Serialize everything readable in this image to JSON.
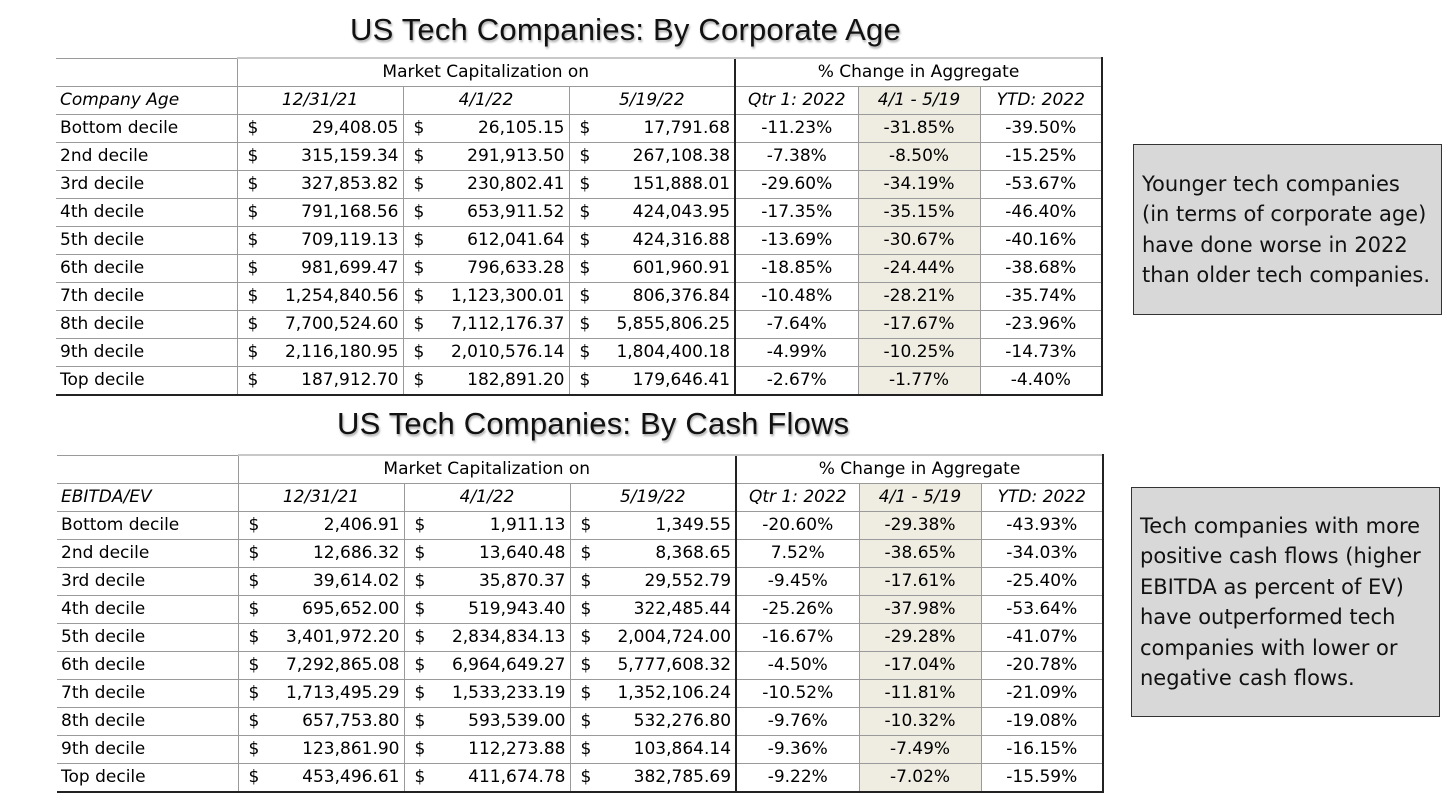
{
  "tables": [
    {
      "title": "US Tech Companies: By Corporate Age",
      "group_headers": [
        "Market Capitalization on",
        "% Change in Aggregate"
      ],
      "columns": [
        "Company Age",
        "12/31/21",
        "4/1/22",
        "5/19/22",
        "Qtr 1: 2022",
        "4/1 - 5/19",
        "YTD: 2022"
      ],
      "currency": "$",
      "rows": [
        {
          "label": "Bottom decile",
          "v1": "29,408.05",
          "v2": "26,105.15",
          "v3": "17,791.68",
          "p1": "-11.23%",
          "p2": "-31.85%",
          "p3": "-39.50%"
        },
        {
          "label": "2nd decile",
          "v1": "315,159.34",
          "v2": "291,913.50",
          "v3": "267,108.38",
          "p1": "-7.38%",
          "p2": "-8.50%",
          "p3": "-15.25%"
        },
        {
          "label": "3rd decile",
          "v1": "327,853.82",
          "v2": "230,802.41",
          "v3": "151,888.01",
          "p1": "-29.60%",
          "p2": "-34.19%",
          "p3": "-53.67%"
        },
        {
          "label": "4th decile",
          "v1": "791,168.56",
          "v2": "653,911.52",
          "v3": "424,043.95",
          "p1": "-17.35%",
          "p2": "-35.15%",
          "p3": "-46.40%"
        },
        {
          "label": "5th decile",
          "v1": "709,119.13",
          "v2": "612,041.64",
          "v3": "424,316.88",
          "p1": "-13.69%",
          "p2": "-30.67%",
          "p3": "-40.16%"
        },
        {
          "label": "6th decile",
          "v1": "981,699.47",
          "v2": "796,633.28",
          "v3": "601,960.91",
          "p1": "-18.85%",
          "p2": "-24.44%",
          "p3": "-38.68%"
        },
        {
          "label": "7th decile",
          "v1": "1,254,840.56",
          "v2": "1,123,300.01",
          "v3": "806,376.84",
          "p1": "-10.48%",
          "p2": "-28.21%",
          "p3": "-35.74%"
        },
        {
          "label": "8th decile",
          "v1": "7,700,524.60",
          "v2": "7,112,176.37",
          "v3": "5,855,806.25",
          "p1": "-7.64%",
          "p2": "-17.67%",
          "p3": "-23.96%"
        },
        {
          "label": "9th decile",
          "v1": "2,116,180.95",
          "v2": "2,010,576.14",
          "v3": "1,804,400.18",
          "p1": "-4.99%",
          "p2": "-10.25%",
          "p3": "-14.73%"
        },
        {
          "label": "Top decile",
          "v1": "187,912.70",
          "v2": "182,891.20",
          "v3": "179,646.41",
          "p1": "-2.67%",
          "p2": "-1.77%",
          "p3": "-4.40%"
        }
      ]
    },
    {
      "title": "US Tech Companies: By Cash Flows",
      "group_headers": [
        "Market Capitalization on",
        "% Change in Aggregate"
      ],
      "columns": [
        "EBITDA/EV",
        "12/31/21",
        "4/1/22",
        "5/19/22",
        "Qtr 1: 2022",
        "4/1 - 5/19",
        "YTD: 2022"
      ],
      "currency": "$",
      "rows": [
        {
          "label": "Bottom decile",
          "v1": "2,406.91",
          "v2": "1,911.13",
          "v3": "1,349.55",
          "p1": "-20.60%",
          "p2": "-29.38%",
          "p3": "-43.93%"
        },
        {
          "label": "2nd decile",
          "v1": "12,686.32",
          "v2": "13,640.48",
          "v3": "8,368.65",
          "p1": "7.52%",
          "p2": "-38.65%",
          "p3": "-34.03%"
        },
        {
          "label": "3rd decile",
          "v1": "39,614.02",
          "v2": "35,870.37",
          "v3": "29,552.79",
          "p1": "-9.45%",
          "p2": "-17.61%",
          "p3": "-25.40%"
        },
        {
          "label": "4th decile",
          "v1": "695,652.00",
          "v2": "519,943.40",
          "v3": "322,485.44",
          "p1": "-25.26%",
          "p2": "-37.98%",
          "p3": "-53.64%"
        },
        {
          "label": "5th decile",
          "v1": "3,401,972.20",
          "v2": "2,834,834.13",
          "v3": "2,004,724.00",
          "p1": "-16.67%",
          "p2": "-29.28%",
          "p3": "-41.07%"
        },
        {
          "label": "6th decile",
          "v1": "7,292,865.08",
          "v2": "6,964,649.27",
          "v3": "5,777,608.32",
          "p1": "-4.50%",
          "p2": "-17.04%",
          "p3": "-20.78%"
        },
        {
          "label": "7th decile",
          "v1": "1,713,495.29",
          "v2": "1,533,233.19",
          "v3": "1,352,106.24",
          "p1": "-10.52%",
          "p2": "-11.81%",
          "p3": "-21.09%"
        },
        {
          "label": "8th decile",
          "v1": "657,753.80",
          "v2": "593,539.00",
          "v3": "532,276.80",
          "p1": "-9.76%",
          "p2": "-10.32%",
          "p3": "-19.08%"
        },
        {
          "label": "9th decile",
          "v1": "123,861.90",
          "v2": "112,273.88",
          "v3": "103,864.14",
          "p1": "-9.36%",
          "p2": "-7.49%",
          "p3": "-16.15%"
        },
        {
          "label": "Top decile",
          "v1": "453,496.61",
          "v2": "411,674.78",
          "v3": "382,785.69",
          "p1": "-9.22%",
          "p2": "-7.02%",
          "p3": "-15.59%"
        }
      ]
    }
  ],
  "notes": [
    "Younger tech companies (in terms of corporate age) have done worse in 2022 than older tech companies.",
    "Tech companies with more positive cash flows (higher EBITDA as percent of EV) have outperformed tech companies with lower or negative cash flows."
  ],
  "colors": {
    "highlight_column": "#efede2",
    "note_background": "#d8d8d8",
    "selection_mark": "#1e7d3a"
  }
}
